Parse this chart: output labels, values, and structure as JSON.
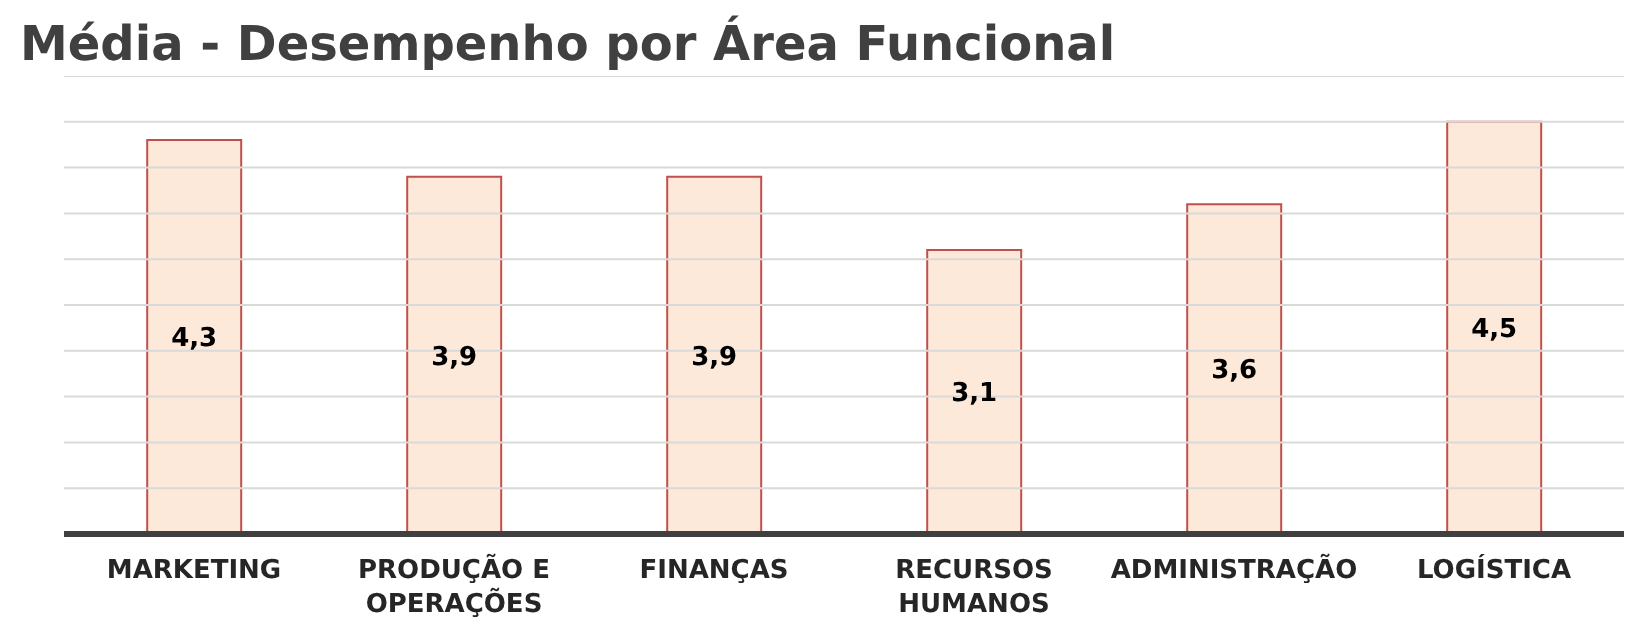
{
  "chart_data": {
    "type": "bar",
    "title": "Média - Desempenho por Área Funcional",
    "categories": [
      "MARKETING",
      "PRODUÇÃO E OPERAÇÕES",
      "FINANÇAS",
      "RECURSOS HUMANOS",
      "ADMINISTRAÇÃO",
      "LOGÍSTICA"
    ],
    "values": [
      4.3,
      3.9,
      3.9,
      3.1,
      3.6,
      4.5
    ],
    "value_labels": [
      "4,3",
      "3,9",
      "3,9",
      "3,1",
      "3,6",
      "4,5"
    ],
    "color": "#fde9d9",
    "ylim": [
      0,
      5
    ],
    "yticks": [
      {
        "value": 0,
        "label": null
      },
      {
        "value": 0.5,
        "label": null
      },
      {
        "value": 1,
        "label": null
      },
      {
        "value": 1.5,
        "label": null
      },
      {
        "value": 2,
        "label": null
      },
      {
        "value": 2.5,
        "label": null
      },
      {
        "value": 3,
        "label": null
      },
      {
        "value": 3.5,
        "label": null
      },
      {
        "value": 4,
        "label": null
      },
      {
        "value": 4.5,
        "label": null
      },
      {
        "value": 5,
        "label": null
      }
    ],
    "grid": "y",
    "tick_labels": "x"
  }
}
